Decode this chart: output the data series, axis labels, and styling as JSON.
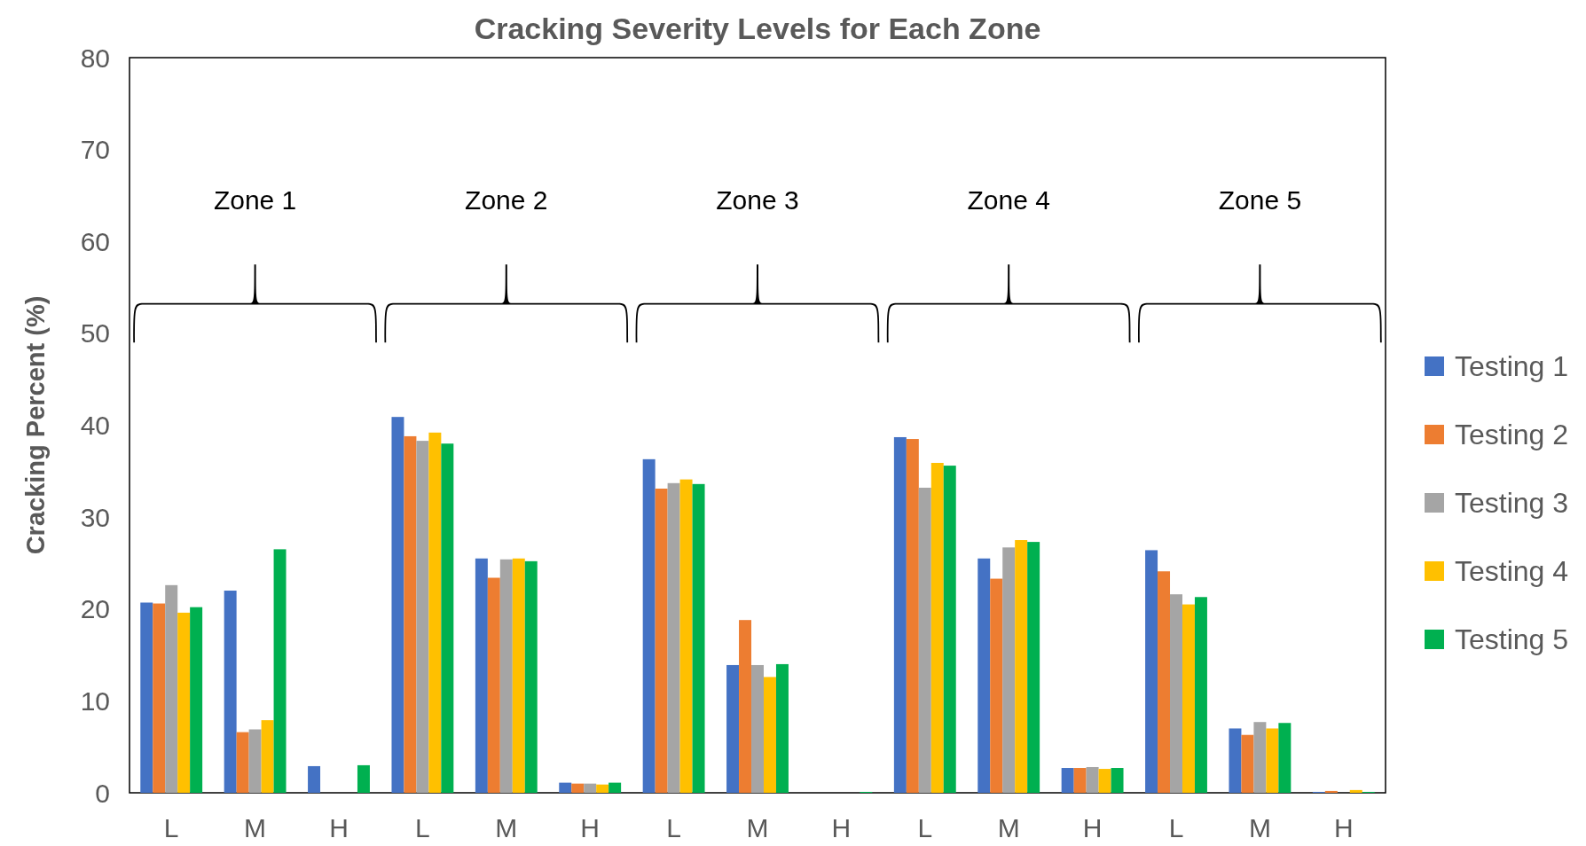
{
  "chart_data": {
    "type": "bar",
    "title": "Cracking Severity Levels for Each Zone",
    "ylabel": "Cracking Percent (%)",
    "categories": [
      "L",
      "M",
      "H",
      "L",
      "M",
      "H",
      "L",
      "M",
      "H",
      "L",
      "M",
      "H",
      "L",
      "M",
      "H"
    ],
    "series": [
      {
        "name": "Testing 1",
        "color": "#4472c4",
        "values": [
          20.7,
          22.0,
          2.9,
          40.9,
          25.5,
          1.1,
          36.3,
          13.9,
          0,
          38.7,
          25.5,
          2.7,
          26.4,
          7.0,
          0.1
        ]
      },
      {
        "name": "Testing 2",
        "color": "#ed7d31",
        "values": [
          20.6,
          6.6,
          0,
          38.8,
          23.4,
          1.0,
          33.1,
          18.8,
          0,
          38.5,
          23.3,
          2.7,
          24.1,
          6.3,
          0.2
        ]
      },
      {
        "name": "Testing 3",
        "color": "#a5a5a5",
        "values": [
          22.6,
          6.9,
          0,
          38.3,
          25.4,
          1.0,
          33.7,
          13.9,
          0,
          33.2,
          26.7,
          2.8,
          21.6,
          7.7,
          null
        ]
      },
      {
        "name": "Testing 4",
        "color": "#ffc000",
        "values": [
          19.6,
          7.9,
          0,
          39.2,
          25.5,
          0.9,
          34.1,
          12.6,
          0,
          35.9,
          27.5,
          2.6,
          20.5,
          7.0,
          0.3
        ]
      },
      {
        "name": "Testing 5",
        "color": "#00b050",
        "values": [
          20.2,
          26.5,
          3.0,
          38.0,
          25.2,
          1.1,
          33.6,
          14.0,
          0.1,
          35.6,
          27.3,
          2.7,
          21.3,
          7.6,
          0.1
        ]
      }
    ],
    "annotations": [
      "Zone 1",
      "Zone 2",
      "Zone 3",
      "Zone 4",
      "Zone 5"
    ],
    "ylim": [
      0,
      80
    ],
    "yticks": [
      0,
      10,
      20,
      30,
      40,
      50,
      60,
      70,
      80
    ],
    "grid": false,
    "legend": "right"
  }
}
